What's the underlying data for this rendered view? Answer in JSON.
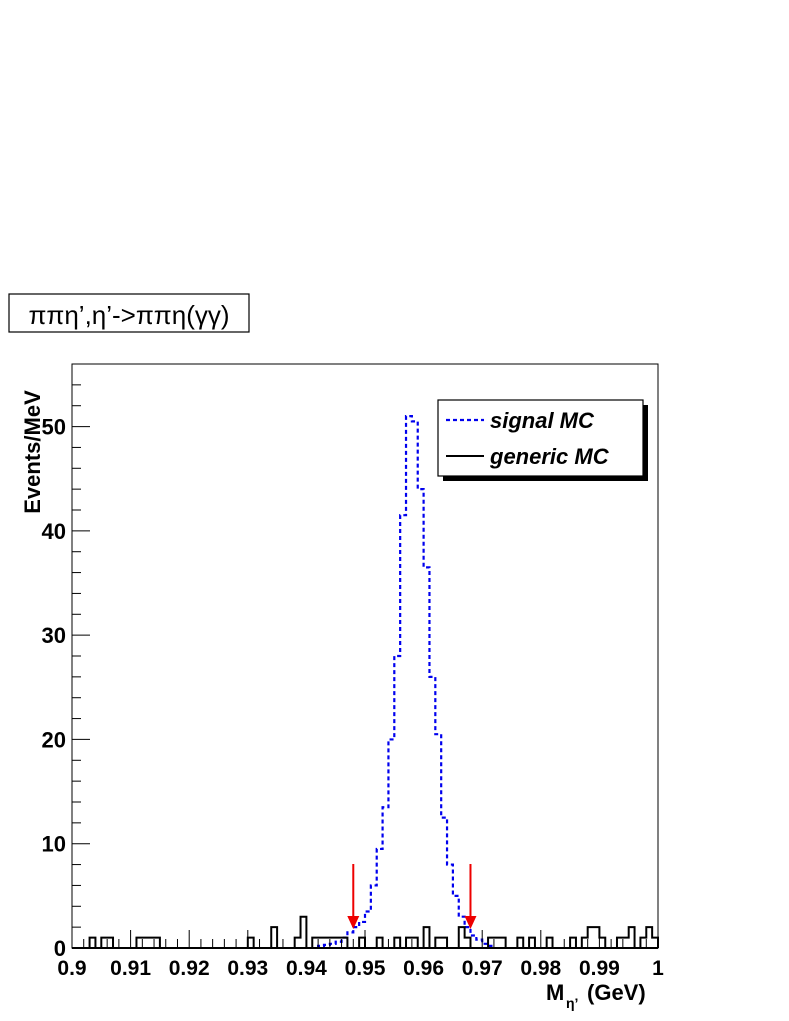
{
  "chart_data": {
    "type": "histogram",
    "title": "ππη’,η’->ππη(γγ)",
    "xlabel_main": "M",
    "xlabel_sub": "η’",
    "xlabel_unit": "(GeV)",
    "ylabel": "Events/MeV",
    "xlim": [
      0.9,
      1.0
    ],
    "ylim": [
      0,
      56
    ],
    "bin_width": 0.001,
    "x_ticks": [
      "0.9",
      "0.91",
      "0.92",
      "0.93",
      "0.94",
      "0.95",
      "0.96",
      "0.97",
      "0.98",
      "0.99",
      "1"
    ],
    "y_ticks": [
      "0",
      "10",
      "20",
      "30",
      "40",
      "50"
    ],
    "legend": {
      "placement": "top-right",
      "entries": [
        "signal MC",
        "generic MC"
      ]
    },
    "series": [
      {
        "name": "signal MC",
        "color": "#0000ee",
        "style": "dashed",
        "bins": [
          {
            "x": 0.942,
            "y": 0.2
          },
          {
            "x": 0.943,
            "y": 0.3
          },
          {
            "x": 0.944,
            "y": 0.4
          },
          {
            "x": 0.945,
            "y": 0.6
          },
          {
            "x": 0.946,
            "y": 1.0
          },
          {
            "x": 0.947,
            "y": 1.5
          },
          {
            "x": 0.948,
            "y": 2.0
          },
          {
            "x": 0.949,
            "y": 2.5
          },
          {
            "x": 0.95,
            "y": 3.5
          },
          {
            "x": 0.951,
            "y": 6.0
          },
          {
            "x": 0.952,
            "y": 9.5
          },
          {
            "x": 0.953,
            "y": 13.5
          },
          {
            "x": 0.954,
            "y": 20.0
          },
          {
            "x": 0.955,
            "y": 28.0
          },
          {
            "x": 0.956,
            "y": 41.5
          },
          {
            "x": 0.957,
            "y": 51.0
          },
          {
            "x": 0.958,
            "y": 50.5
          },
          {
            "x": 0.959,
            "y": 44.0
          },
          {
            "x": 0.96,
            "y": 36.5
          },
          {
            "x": 0.961,
            "y": 26.0
          },
          {
            "x": 0.962,
            "y": 20.5
          },
          {
            "x": 0.963,
            "y": 12.5
          },
          {
            "x": 0.964,
            "y": 8.0
          },
          {
            "x": 0.965,
            "y": 5.0
          },
          {
            "x": 0.966,
            "y": 3.0
          },
          {
            "x": 0.967,
            "y": 2.0
          },
          {
            "x": 0.968,
            "y": 1.2
          },
          {
            "x": 0.969,
            "y": 0.8
          },
          {
            "x": 0.97,
            "y": 0.4
          },
          {
            "x": 0.971,
            "y": 0.2
          }
        ]
      },
      {
        "name": "generic MC",
        "color": "#000000",
        "style": "solid",
        "bins": [
          {
            "x": 0.903,
            "y": 1
          },
          {
            "x": 0.905,
            "y": 1
          },
          {
            "x": 0.906,
            "y": 1
          },
          {
            "x": 0.911,
            "y": 1
          },
          {
            "x": 0.912,
            "y": 1
          },
          {
            "x": 0.913,
            "y": 1
          },
          {
            "x": 0.914,
            "y": 1
          },
          {
            "x": 0.93,
            "y": 1
          },
          {
            "x": 0.934,
            "y": 2
          },
          {
            "x": 0.938,
            "y": 1
          },
          {
            "x": 0.939,
            "y": 3
          },
          {
            "x": 0.941,
            "y": 1
          },
          {
            "x": 0.942,
            "y": 1
          },
          {
            "x": 0.943,
            "y": 1
          },
          {
            "x": 0.944,
            "y": 1
          },
          {
            "x": 0.945,
            "y": 1
          },
          {
            "x": 0.946,
            "y": 1
          },
          {
            "x": 0.949,
            "y": 1
          },
          {
            "x": 0.952,
            "y": 1
          },
          {
            "x": 0.955,
            "y": 1
          },
          {
            "x": 0.957,
            "y": 1
          },
          {
            "x": 0.958,
            "y": 1
          },
          {
            "x": 0.96,
            "y": 2
          },
          {
            "x": 0.962,
            "y": 1
          },
          {
            "x": 0.963,
            "y": 1
          },
          {
            "x": 0.966,
            "y": 2
          },
          {
            "x": 0.967,
            "y": 1
          },
          {
            "x": 0.971,
            "y": 1
          },
          {
            "x": 0.972,
            "y": 1
          },
          {
            "x": 0.973,
            "y": 1
          },
          {
            "x": 0.976,
            "y": 1
          },
          {
            "x": 0.978,
            "y": 1
          },
          {
            "x": 0.981,
            "y": 1
          },
          {
            "x": 0.985,
            "y": 1
          },
          {
            "x": 0.987,
            "y": 1
          },
          {
            "x": 0.988,
            "y": 2
          },
          {
            "x": 0.989,
            "y": 2
          },
          {
            "x": 0.99,
            "y": 1
          },
          {
            "x": 0.993,
            "y": 1
          },
          {
            "x": 0.994,
            "y": 1
          },
          {
            "x": 0.995,
            "y": 2
          },
          {
            "x": 0.997,
            "y": 1
          },
          {
            "x": 0.998,
            "y": 2
          },
          {
            "x": 0.999,
            "y": 1
          }
        ]
      }
    ],
    "cut_arrows": [
      {
        "x": 0.948,
        "color": "#ee0000"
      },
      {
        "x": 0.968,
        "color": "#ee0000"
      }
    ]
  }
}
